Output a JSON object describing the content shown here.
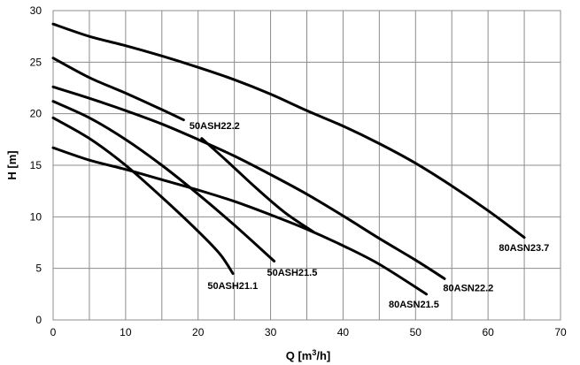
{
  "chart_data": {
    "type": "line",
    "title": "",
    "xlabel_main": "Q [m",
    "xlabel_sup": "3",
    "xlabel_end": "/h]",
    "ylabel": "H [m]",
    "xlim": [
      0,
      70
    ],
    "ylim": [
      0,
      30
    ],
    "xticks": [
      0,
      10,
      20,
      30,
      40,
      50,
      60,
      70
    ],
    "yticks": [
      0,
      5,
      10,
      15,
      20,
      25,
      30
    ],
    "xgrid_step": 5,
    "ygrid_step": 5,
    "grid": true,
    "legend": "none (curve labels on plot)",
    "series": [
      {
        "name": "80ASN23.7",
        "x": [
          0,
          5,
          10,
          15,
          20,
          25,
          30,
          35,
          40,
          45,
          50,
          55,
          60,
          65
        ],
        "y": [
          28.7,
          27.5,
          26.6,
          25.6,
          24.5,
          23.3,
          21.9,
          20.3,
          18.8,
          17.1,
          15.2,
          13.0,
          10.6,
          8.0
        ]
      },
      {
        "name": "50ASH22.2",
        "x": [
          0,
          5,
          10,
          15,
          18
        ],
        "y": [
          25.4,
          23.5,
          22.0,
          20.4,
          19.4
        ]
      },
      {
        "name": "50ASH22.2",
        "x": [
          20.5,
          24,
          28,
          32,
          36
        ],
        "y": [
          17.6,
          15.4,
          12.8,
          10.4,
          8.5
        ]
      },
      {
        "name": "80ASN22.2",
        "x": [
          0,
          5,
          10,
          15,
          20,
          25,
          30,
          35,
          40,
          45,
          50,
          54
        ],
        "y": [
          22.6,
          21.5,
          20.3,
          19.0,
          17.5,
          15.9,
          14.1,
          12.2,
          10.1,
          7.9,
          5.8,
          4.0
        ]
      },
      {
        "name": "50ASH21.5",
        "x": [
          0,
          5,
          10,
          15,
          20,
          25,
          30.5
        ],
        "y": [
          21.2,
          19.6,
          17.5,
          15.0,
          12.2,
          9.2,
          5.7
        ]
      },
      {
        "name": "50ASH21.1",
        "x": [
          0,
          5,
          10,
          15,
          20,
          23,
          24.8
        ],
        "y": [
          19.6,
          17.6,
          15.0,
          11.9,
          8.6,
          6.4,
          4.5
        ]
      },
      {
        "name": "80ASN21.5",
        "x": [
          0,
          5,
          10,
          15,
          20,
          25,
          30,
          35,
          40,
          45,
          51.5
        ],
        "y": [
          16.7,
          15.5,
          14.6,
          13.6,
          12.6,
          11.5,
          10.2,
          8.8,
          7.2,
          5.4,
          2.5
        ]
      }
    ],
    "annotations": [
      {
        "text": "80ASN23.7",
        "x": 61.5,
        "y": 6.7
      },
      {
        "text": "50ASH22.2",
        "x": 18.8,
        "y": 18.5
      },
      {
        "text": "80ASN22.2",
        "x": 53.8,
        "y": 2.8
      },
      {
        "text": "50ASH21.5",
        "x": 29.5,
        "y": 4.3
      },
      {
        "text": "50ASH21.1",
        "x": 21.3,
        "y": 3.0
      },
      {
        "text": "80ASN21.5",
        "x": 46.3,
        "y": 1.2
      }
    ]
  }
}
